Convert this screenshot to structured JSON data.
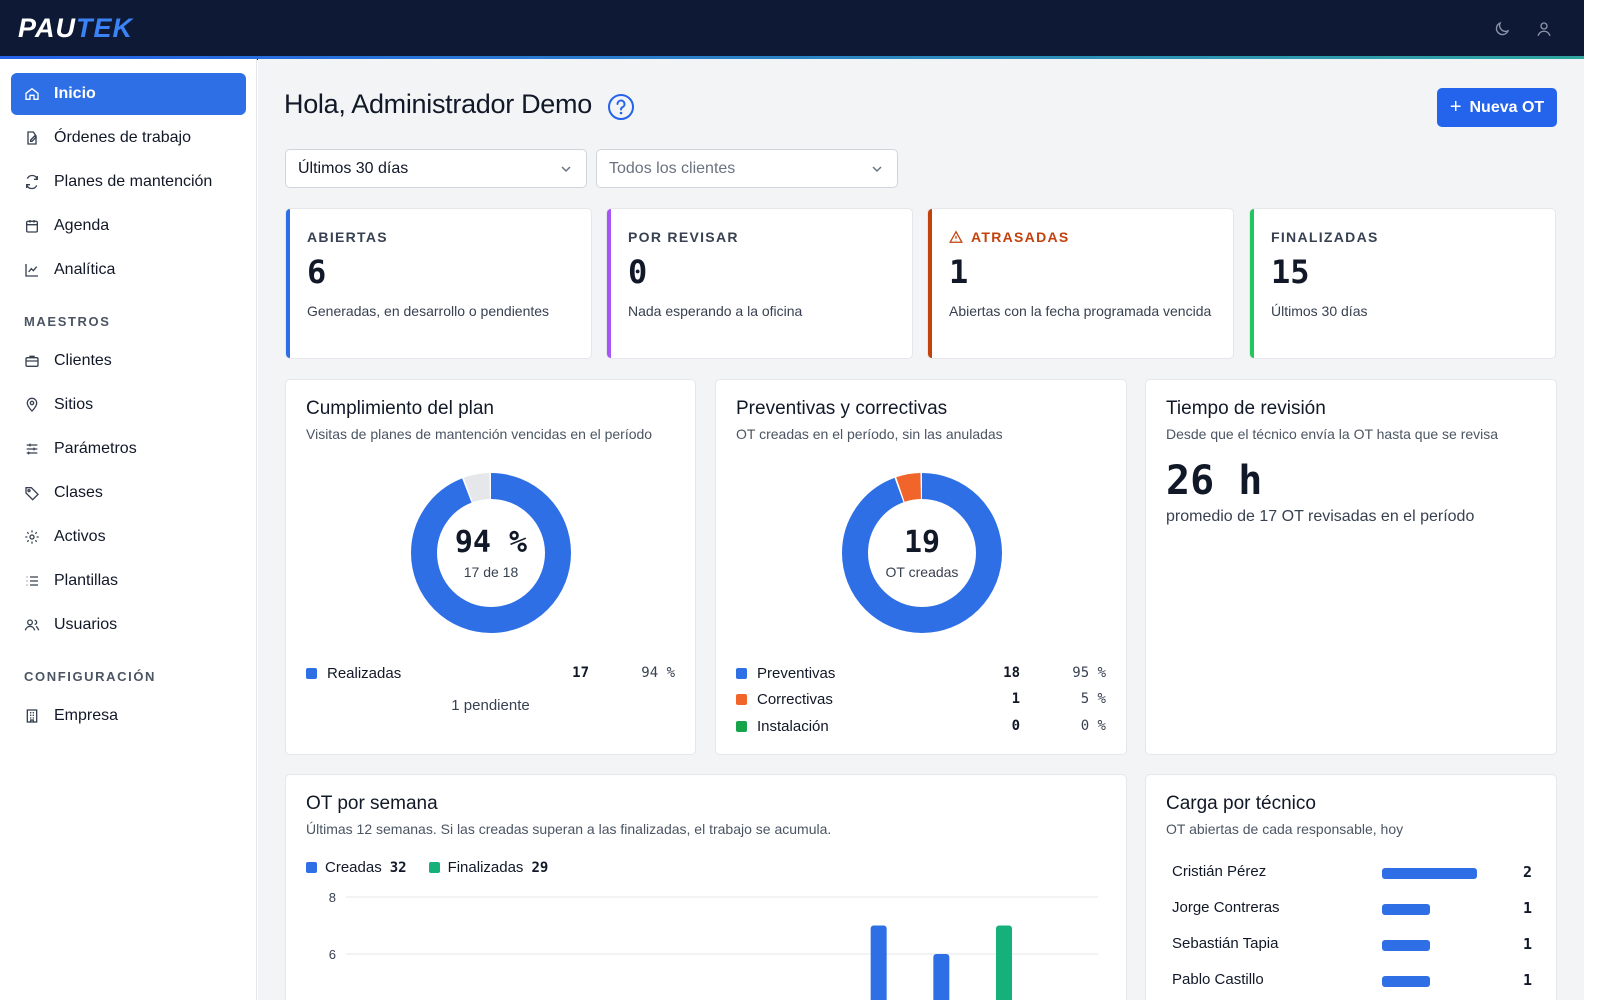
{
  "header": {
    "logo_part1": "PAU",
    "logo_part2": "TEK",
    "icons": [
      "moon-icon",
      "user-icon"
    ]
  },
  "sidebar": {
    "items": [
      {
        "label": "Inicio",
        "icon": "home-icon",
        "active": true
      },
      {
        "label": "Órdenes de trabajo",
        "icon": "edit-document-icon"
      },
      {
        "label": "Planes de mantención",
        "icon": "refresh-icon"
      },
      {
        "label": "Agenda",
        "icon": "calendar-icon"
      },
      {
        "label": "Analítica",
        "icon": "line-chart-icon"
      }
    ],
    "section_maestros": "MAESTROS",
    "maestros": [
      {
        "label": "Clientes",
        "icon": "briefcase-icon"
      },
      {
        "label": "Sitios",
        "icon": "map-pin-icon"
      },
      {
        "label": "Parámetros",
        "icon": "sliders-icon"
      },
      {
        "label": "Clases",
        "icon": "tag-icon"
      },
      {
        "label": "Activos",
        "icon": "gear-icon"
      },
      {
        "label": "Plantillas",
        "icon": "list-icon"
      },
      {
        "label": "Usuarios",
        "icon": "users-icon"
      }
    ],
    "section_config": "CONFIGURACIÓN",
    "config": [
      {
        "label": "Empresa",
        "icon": "building-icon"
      }
    ]
  },
  "main": {
    "title": "Hola, Administrador Demo",
    "new_button": "Nueva OT",
    "filters": {
      "period": "Últimos 30 días",
      "client": "Todos los clientes"
    },
    "kpis": [
      {
        "label": "ABIERTAS",
        "value": "6",
        "desc": "Generadas, en desarrollo o pendientes",
        "color": "#2f6fe6"
      },
      {
        "label": "POR REVISAR",
        "value": "0",
        "desc": "Nada esperando a la oficina",
        "color": "#a855f7"
      },
      {
        "label": "ATRASADAS",
        "value": "1",
        "desc": "Abiertas con la fecha programada vencida",
        "color": "#c2410c",
        "warning": true
      },
      {
        "label": "FINALIZADAS",
        "value": "15",
        "desc": "Últimos 30 días",
        "color": "#22c55e"
      }
    ],
    "plan": {
      "title": "Cumplimiento del plan",
      "subtitle": "Visitas de planes de mantención vencidas en el período",
      "center_value": "94 %",
      "center_sub": "17 de 18",
      "done": 17,
      "total": 18,
      "legend": [
        {
          "label": "Realizadas",
          "count": "17",
          "pct": "94 %",
          "color": "#2f6fe6"
        }
      ],
      "pending": "1 pendiente"
    },
    "types": {
      "title": "Preventivas y correctivas",
      "subtitle": "OT creadas en el período, sin las anuladas",
      "center_value": "19",
      "center_sub": "OT creadas",
      "legend": [
        {
          "label": "Preventivas",
          "count": "18",
          "pct": "95 %",
          "color": "#2f6fe6",
          "value": 18
        },
        {
          "label": "Correctivas",
          "count": "1",
          "pct": "5 %",
          "color": "#f2652a",
          "value": 1
        },
        {
          "label": "Instalación",
          "count": "0",
          "pct": "0 %",
          "color": "#16a34a",
          "value": 0
        }
      ]
    },
    "review": {
      "title": "Tiempo de revisión",
      "subtitle": "Desde que el técnico envía la OT hasta que se revisa",
      "value": "26 h",
      "desc": "promedio de 17 OT revisadas en el período"
    },
    "tech": {
      "title": "Carga por técnico",
      "subtitle": "OT abiertas de cada responsable, hoy",
      "rows": [
        {
          "name": "Cristián Pérez",
          "value": "2",
          "n": 2
        },
        {
          "name": "Jorge Contreras",
          "value": "1",
          "n": 1
        },
        {
          "name": "Sebastián Tapia",
          "value": "1",
          "n": 1
        },
        {
          "name": "Pablo Castillo",
          "value": "1",
          "n": 1
        }
      ]
    }
  },
  "chart_data": {
    "type": "bar",
    "title": "OT por semana",
    "subtitle": "Últimas 12 semanas. Si las creadas superan a las finalizadas, el trabajo se acumula.",
    "legend_placement": "top-left",
    "series": [
      {
        "name": "Creadas",
        "total": "32",
        "color": "#2f6fe6",
        "visible_points": [
          {
            "week_index": 8,
            "value": 7
          },
          {
            "week_index": 9,
            "value": 6
          }
        ]
      },
      {
        "name": "Finalizadas",
        "total": "29",
        "color": "#16b07a",
        "visible_points": [
          {
            "week_index": 10,
            "value": 7
          }
        ]
      }
    ],
    "y_ticks_visible": [
      "8",
      "6"
    ],
    "grid": true
  }
}
